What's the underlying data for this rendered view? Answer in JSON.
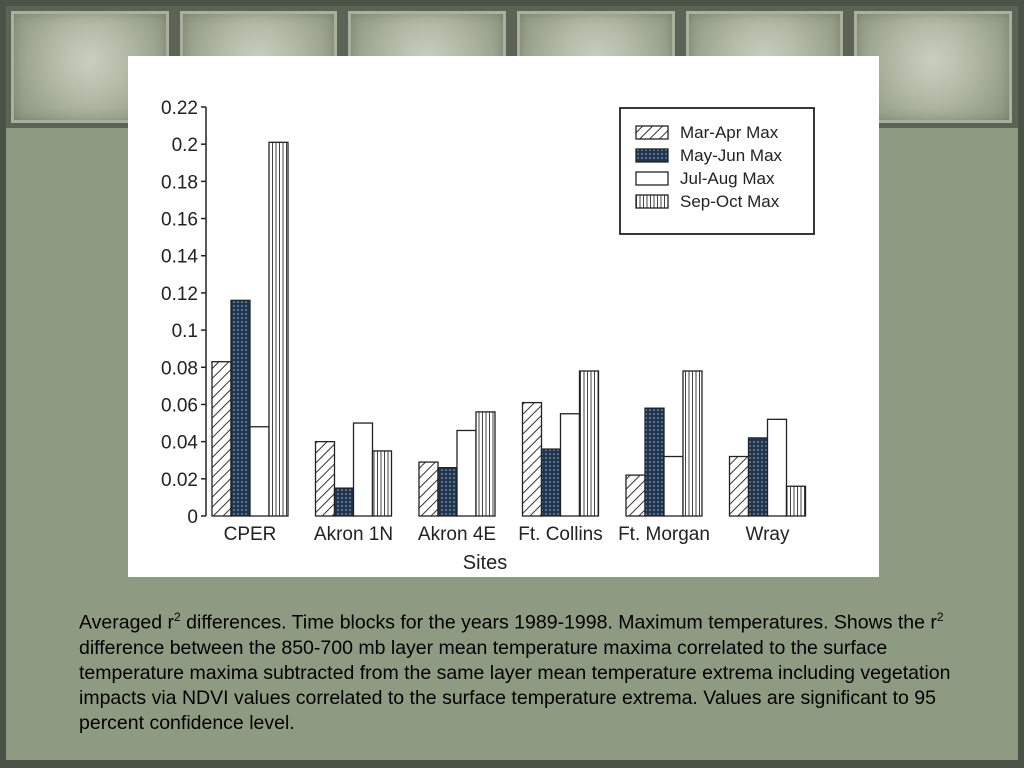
{
  "chart_data": {
    "type": "bar",
    "categories": [
      "CPER",
      "Akron 1N",
      "Akron 4E",
      "Ft. Collins",
      "Ft. Morgan",
      "Wray"
    ],
    "series": [
      {
        "name": "Mar-Apr  Max",
        "pattern": "hatch-diagonal",
        "values": [
          0.083,
          0.04,
          0.029,
          0.061,
          0.022,
          0.032
        ]
      },
      {
        "name": "May-Jun  Max",
        "pattern": "dotted-dark",
        "values": [
          0.116,
          0.015,
          0.026,
          0.036,
          0.058,
          0.042
        ]
      },
      {
        "name": "Jul-Aug  Max",
        "pattern": "white",
        "values": [
          0.048,
          0.05,
          0.046,
          0.055,
          0.032,
          0.052
        ]
      },
      {
        "name": "Sep-Oct  Max",
        "pattern": "hatch-vertical",
        "values": [
          0.201,
          0.035,
          0.056,
          0.078,
          0.078,
          0.016
        ]
      }
    ],
    "xlabel": "Sites",
    "ylabel": "",
    "ylim": [
      0,
      0.22
    ],
    "yticks": [
      "0",
      "0.02",
      "0.04",
      "0.06",
      "0.08",
      "0.1",
      "0.12",
      "0.14",
      "0.16",
      "0.18",
      "0.2",
      "0.22"
    ],
    "legend_position": "top-right",
    "grid": false
  },
  "caption": {
    "text_a": "Averaged r",
    "sup_a": "2",
    "text_b": " differences. Time blocks for the years 1989-1998. Maximum temperatures. Shows the r",
    "sup_b": "2",
    "text_c": " difference between the 850-700 mb layer mean temperature maxima correlated to the surface temperature maxima subtracted from the same layer mean temperature extrema including vegetation impacts via NDVI values correlated to the surface temperature extrema. Values are significant to 95 percent confidence level."
  },
  "colors": {
    "background": "#8f9a82",
    "frame": "#4a5245",
    "panel": "#ffffff",
    "ink": "#222222",
    "dark_fill": "#1f3550"
  }
}
